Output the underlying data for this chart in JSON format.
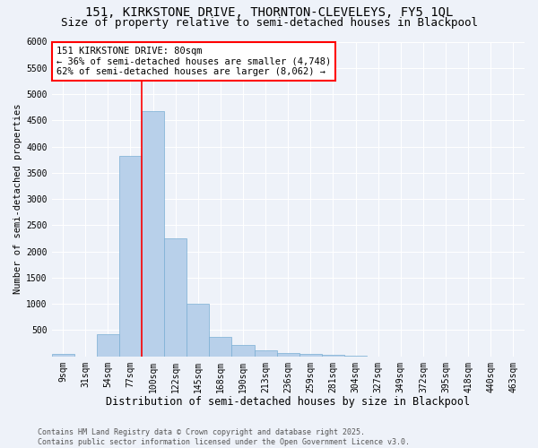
{
  "title1": "151, KIRKSTONE DRIVE, THORNTON-CLEVELEYS, FY5 1QL",
  "title2": "Size of property relative to semi-detached houses in Blackpool",
  "xlabel": "Distribution of semi-detached houses by size in Blackpool",
  "ylabel": "Number of semi-detached properties",
  "footnote": "Contains HM Land Registry data © Crown copyright and database right 2025.\nContains public sector information licensed under the Open Government Licence v3.0.",
  "categories": [
    "9sqm",
    "31sqm",
    "54sqm",
    "77sqm",
    "100sqm",
    "122sqm",
    "145sqm",
    "168sqm",
    "190sqm",
    "213sqm",
    "236sqm",
    "259sqm",
    "281sqm",
    "304sqm",
    "327sqm",
    "349sqm",
    "372sqm",
    "395sqm",
    "418sqm",
    "440sqm",
    "463sqm"
  ],
  "values": [
    50,
    0,
    430,
    3820,
    4670,
    2250,
    1000,
    370,
    210,
    110,
    70,
    50,
    30,
    5,
    0,
    0,
    0,
    0,
    0,
    0,
    0
  ],
  "bar_color": "#b8d0ea",
  "bar_edge_color": "#7aaed4",
  "vline_x_index": 3.5,
  "vline_color": "red",
  "annotation_line1": "151 KIRKSTONE DRIVE: 80sqm",
  "annotation_line2": "← 36% of semi-detached houses are smaller (4,748)",
  "annotation_line3": "62% of semi-detached houses are larger (8,062) →",
  "ylim": [
    0,
    6000
  ],
  "yticks": [
    0,
    500,
    1000,
    1500,
    2000,
    2500,
    3000,
    3500,
    4000,
    4500,
    5000,
    5500,
    6000
  ],
  "background_color": "#eef2f9",
  "grid_color": "#ffffff",
  "title_fontsize": 10,
  "subtitle_fontsize": 9,
  "xlabel_fontsize": 8.5,
  "ylabel_fontsize": 7.5,
  "tick_fontsize": 7,
  "annotation_fontsize": 7.5,
  "footnote_fontsize": 6
}
